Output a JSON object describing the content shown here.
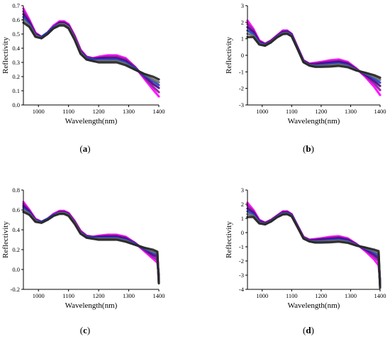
{
  "chart_data": [
    {
      "type": "line",
      "panel_id": "a",
      "caption_prefix": "(",
      "caption_letter": "a",
      "caption_suffix": ")",
      "xlabel": "Wavelength(nm)",
      "ylabel": "Reflectivity",
      "xlim": [
        950,
        1400
      ],
      "ylim": [
        0.0,
        0.7
      ],
      "xticks": [
        1000,
        1100,
        1200,
        1300,
        1400
      ],
      "yticks": [
        0.0,
        0.1,
        0.2,
        0.3,
        0.4,
        0.5,
        0.6,
        0.7
      ],
      "ytick_labels": [
        "0.0",
        "0.1",
        "0.2",
        "0.3",
        "0.4",
        "0.5",
        "0.6",
        "0.7"
      ],
      "x": [
        950,
        970,
        990,
        1010,
        1030,
        1050,
        1070,
        1085,
        1100,
        1120,
        1140,
        1160,
        1180,
        1200,
        1230,
        1260,
        1290,
        1320,
        1350,
        1380,
        1400
      ],
      "series": [
        {
          "color": "#ff00ff",
          "values": [
            0.68,
            0.6,
            0.51,
            0.48,
            0.51,
            0.56,
            0.59,
            0.59,
            0.57,
            0.49,
            0.39,
            0.34,
            0.33,
            0.34,
            0.35,
            0.35,
            0.33,
            0.27,
            0.19,
            0.11,
            0.06
          ]
        },
        {
          "color": "#8b1a9c",
          "values": [
            0.66,
            0.59,
            0.5,
            0.48,
            0.51,
            0.55,
            0.58,
            0.58,
            0.56,
            0.48,
            0.38,
            0.34,
            0.33,
            0.33,
            0.34,
            0.34,
            0.32,
            0.27,
            0.2,
            0.13,
            0.09
          ]
        },
        {
          "color": "#4b0082",
          "values": [
            0.64,
            0.58,
            0.5,
            0.48,
            0.51,
            0.55,
            0.58,
            0.58,
            0.56,
            0.48,
            0.38,
            0.33,
            0.32,
            0.33,
            0.33,
            0.33,
            0.31,
            0.26,
            0.21,
            0.15,
            0.12
          ]
        },
        {
          "color": "#1f3fbf",
          "values": [
            0.62,
            0.57,
            0.49,
            0.48,
            0.51,
            0.55,
            0.57,
            0.57,
            0.55,
            0.47,
            0.37,
            0.33,
            0.32,
            0.32,
            0.32,
            0.32,
            0.3,
            0.26,
            0.21,
            0.17,
            0.14
          ]
        },
        {
          "color": "#6a6a6a",
          "values": [
            0.6,
            0.56,
            0.49,
            0.47,
            0.5,
            0.54,
            0.57,
            0.57,
            0.55,
            0.47,
            0.37,
            0.32,
            0.31,
            0.31,
            0.31,
            0.31,
            0.29,
            0.25,
            0.22,
            0.18,
            0.16
          ]
        },
        {
          "color": "#222222",
          "values": [
            0.58,
            0.55,
            0.48,
            0.47,
            0.5,
            0.54,
            0.56,
            0.56,
            0.54,
            0.46,
            0.36,
            0.32,
            0.31,
            0.3,
            0.3,
            0.3,
            0.28,
            0.25,
            0.22,
            0.2,
            0.18
          ]
        }
      ]
    },
    {
      "type": "line",
      "panel_id": "b",
      "caption_prefix": "(",
      "caption_letter": "b",
      "caption_suffix": ")",
      "xlabel": "Wavelength(nm)",
      "ylabel": "Reflectivity",
      "xlim": [
        950,
        1400
      ],
      "ylim": [
        -3,
        3
      ],
      "xticks": [
        1000,
        1100,
        1200,
        1300,
        1400
      ],
      "yticks": [
        -3,
        -2,
        -1,
        0,
        1,
        2,
        3
      ],
      "ytick_labels": [
        "-3",
        "-2",
        "-1",
        "0",
        "1",
        "2",
        "3"
      ],
      "x": [
        950,
        970,
        990,
        1010,
        1030,
        1050,
        1070,
        1085,
        1100,
        1120,
        1140,
        1160,
        1180,
        1200,
        1230,
        1260,
        1290,
        1320,
        1350,
        1380,
        1400
      ],
      "series": [
        {
          "color": "#ff00ff",
          "values": [
            2.1,
            1.6,
            0.9,
            0.7,
            0.9,
            1.2,
            1.5,
            1.5,
            1.3,
            0.5,
            -0.3,
            -0.5,
            -0.45,
            -0.4,
            -0.3,
            -0.25,
            -0.4,
            -0.8,
            -1.3,
            -1.9,
            -2.4
          ]
        },
        {
          "color": "#8b1a9c",
          "values": [
            1.9,
            1.5,
            0.85,
            0.68,
            0.88,
            1.18,
            1.45,
            1.46,
            1.28,
            0.48,
            -0.32,
            -0.52,
            -0.5,
            -0.45,
            -0.38,
            -0.33,
            -0.46,
            -0.83,
            -1.22,
            -1.7,
            -2.1
          ]
        },
        {
          "color": "#4b0082",
          "values": [
            1.7,
            1.4,
            0.8,
            0.65,
            0.85,
            1.15,
            1.4,
            1.42,
            1.25,
            0.45,
            -0.35,
            -0.55,
            -0.55,
            -0.5,
            -0.45,
            -0.4,
            -0.52,
            -0.86,
            -1.16,
            -1.55,
            -1.85
          ]
        },
        {
          "color": "#1f3fbf",
          "values": [
            1.5,
            1.3,
            0.75,
            0.62,
            0.82,
            1.12,
            1.36,
            1.38,
            1.22,
            0.42,
            -0.38,
            -0.58,
            -0.6,
            -0.57,
            -0.52,
            -0.48,
            -0.58,
            -0.88,
            -1.12,
            -1.42,
            -1.65
          ]
        },
        {
          "color": "#6a6a6a",
          "values": [
            1.3,
            1.2,
            0.7,
            0.6,
            0.8,
            1.1,
            1.32,
            1.34,
            1.18,
            0.4,
            -0.4,
            -0.6,
            -0.65,
            -0.63,
            -0.6,
            -0.56,
            -0.65,
            -0.9,
            -1.08,
            -1.3,
            -1.48
          ]
        },
        {
          "color": "#222222",
          "values": [
            1.1,
            1.1,
            0.65,
            0.58,
            0.78,
            1.08,
            1.28,
            1.3,
            1.15,
            0.38,
            -0.42,
            -0.62,
            -0.7,
            -0.7,
            -0.68,
            -0.64,
            -0.72,
            -0.92,
            -1.05,
            -1.2,
            -1.35
          ]
        }
      ]
    },
    {
      "type": "line",
      "panel_id": "c",
      "caption_prefix": "(",
      "caption_letter": "c",
      "caption_suffix": ")",
      "xlabel": "Wavelength(nm)",
      "ylabel": "Reflectivity",
      "xlim": [
        950,
        1400
      ],
      "ylim": [
        -0.2,
        0.8
      ],
      "xticks": [
        1000,
        1100,
        1200,
        1300,
        1400
      ],
      "yticks": [
        -0.2,
        0.0,
        0.2,
        0.4,
        0.6,
        0.8
      ],
      "ytick_labels": [
        "-0.2",
        "0.0",
        "0.2",
        "0.4",
        "0.6",
        "0.8"
      ],
      "x": [
        950,
        970,
        990,
        1010,
        1030,
        1050,
        1070,
        1085,
        1100,
        1120,
        1140,
        1160,
        1180,
        1200,
        1230,
        1260,
        1290,
        1320,
        1350,
        1380,
        1395,
        1400
      ],
      "series": [
        {
          "color": "#ff00ff",
          "values": [
            0.68,
            0.6,
            0.51,
            0.48,
            0.51,
            0.56,
            0.59,
            0.59,
            0.57,
            0.49,
            0.39,
            0.34,
            0.33,
            0.34,
            0.35,
            0.35,
            0.33,
            0.27,
            0.19,
            0.11,
            0.07,
            -0.05
          ]
        },
        {
          "color": "#8b1a9c",
          "values": [
            0.66,
            0.59,
            0.5,
            0.48,
            0.51,
            0.55,
            0.58,
            0.58,
            0.56,
            0.48,
            0.38,
            0.34,
            0.33,
            0.33,
            0.34,
            0.34,
            0.32,
            0.27,
            0.2,
            0.13,
            0.1,
            -0.08
          ]
        },
        {
          "color": "#4b0082",
          "values": [
            0.64,
            0.58,
            0.5,
            0.48,
            0.51,
            0.55,
            0.58,
            0.58,
            0.56,
            0.48,
            0.38,
            0.33,
            0.32,
            0.33,
            0.33,
            0.33,
            0.31,
            0.26,
            0.21,
            0.15,
            0.13,
            -0.1
          ]
        },
        {
          "color": "#1f3fbf",
          "values": [
            0.62,
            0.57,
            0.49,
            0.48,
            0.51,
            0.55,
            0.57,
            0.57,
            0.55,
            0.47,
            0.37,
            0.33,
            0.32,
            0.32,
            0.32,
            0.32,
            0.3,
            0.26,
            0.21,
            0.17,
            0.15,
            -0.12
          ]
        },
        {
          "color": "#6a6a6a",
          "values": [
            0.6,
            0.56,
            0.49,
            0.47,
            0.5,
            0.54,
            0.57,
            0.57,
            0.55,
            0.47,
            0.37,
            0.32,
            0.31,
            0.31,
            0.31,
            0.31,
            0.29,
            0.25,
            0.22,
            0.18,
            0.17,
            -0.13
          ]
        },
        {
          "color": "#222222",
          "values": [
            0.58,
            0.55,
            0.48,
            0.47,
            0.5,
            0.54,
            0.56,
            0.56,
            0.54,
            0.46,
            0.36,
            0.32,
            0.31,
            0.3,
            0.3,
            0.3,
            0.28,
            0.25,
            0.22,
            0.2,
            0.18,
            -0.14
          ]
        }
      ]
    },
    {
      "type": "line",
      "panel_id": "d",
      "caption_prefix": "(",
      "caption_letter": "d",
      "caption_suffix": ")",
      "xlabel": "Wavelength(nm)",
      "ylabel": "Reflectivity",
      "xlim": [
        950,
        1400
      ],
      "ylim": [
        -4,
        3
      ],
      "xticks": [
        1000,
        1100,
        1200,
        1300,
        1400
      ],
      "yticks": [
        -4,
        -3,
        -2,
        -1,
        0,
        1,
        2,
        3
      ],
      "ytick_labels": [
        "-4",
        "-3",
        "-2",
        "-1",
        "0",
        "1",
        "2",
        "3"
      ],
      "x": [
        950,
        970,
        990,
        1010,
        1030,
        1050,
        1070,
        1085,
        1100,
        1120,
        1140,
        1160,
        1180,
        1200,
        1230,
        1260,
        1290,
        1320,
        1350,
        1380,
        1395,
        1400
      ],
      "series": [
        {
          "color": "#ff00ff",
          "values": [
            2.1,
            1.6,
            0.9,
            0.7,
            0.9,
            1.2,
            1.5,
            1.5,
            1.3,
            0.5,
            -0.3,
            -0.5,
            -0.45,
            -0.4,
            -0.3,
            -0.25,
            -0.4,
            -0.8,
            -1.3,
            -1.9,
            -2.3,
            -3.4
          ]
        },
        {
          "color": "#8b1a9c",
          "values": [
            1.9,
            1.5,
            0.85,
            0.68,
            0.88,
            1.18,
            1.45,
            1.46,
            1.28,
            0.48,
            -0.32,
            -0.52,
            -0.5,
            -0.45,
            -0.38,
            -0.33,
            -0.46,
            -0.83,
            -1.22,
            -1.7,
            -2.0,
            -3.5
          ]
        },
        {
          "color": "#4b0082",
          "values": [
            1.7,
            1.4,
            0.8,
            0.65,
            0.85,
            1.15,
            1.4,
            1.42,
            1.25,
            0.45,
            -0.35,
            -0.55,
            -0.55,
            -0.5,
            -0.45,
            -0.4,
            -0.52,
            -0.86,
            -1.16,
            -1.55,
            -1.8,
            -3.6
          ]
        },
        {
          "color": "#1f3fbf",
          "values": [
            1.5,
            1.3,
            0.75,
            0.62,
            0.82,
            1.12,
            1.36,
            1.38,
            1.22,
            0.42,
            -0.38,
            -0.58,
            -0.6,
            -0.57,
            -0.52,
            -0.48,
            -0.58,
            -0.88,
            -1.12,
            -1.42,
            -1.6,
            -3.7
          ]
        },
        {
          "color": "#6a6a6a",
          "values": [
            1.3,
            1.2,
            0.7,
            0.6,
            0.8,
            1.1,
            1.32,
            1.34,
            1.18,
            0.4,
            -0.4,
            -0.6,
            -0.65,
            -0.63,
            -0.6,
            -0.56,
            -0.65,
            -0.9,
            -1.08,
            -1.3,
            -1.45,
            -3.8
          ]
        },
        {
          "color": "#222222",
          "values": [
            1.1,
            1.1,
            0.65,
            0.58,
            0.78,
            1.08,
            1.28,
            1.3,
            1.15,
            0.38,
            -0.42,
            -0.62,
            -0.7,
            -0.7,
            -0.68,
            -0.64,
            -0.72,
            -0.92,
            -1.05,
            -1.2,
            -1.3,
            -3.9
          ]
        }
      ]
    }
  ]
}
